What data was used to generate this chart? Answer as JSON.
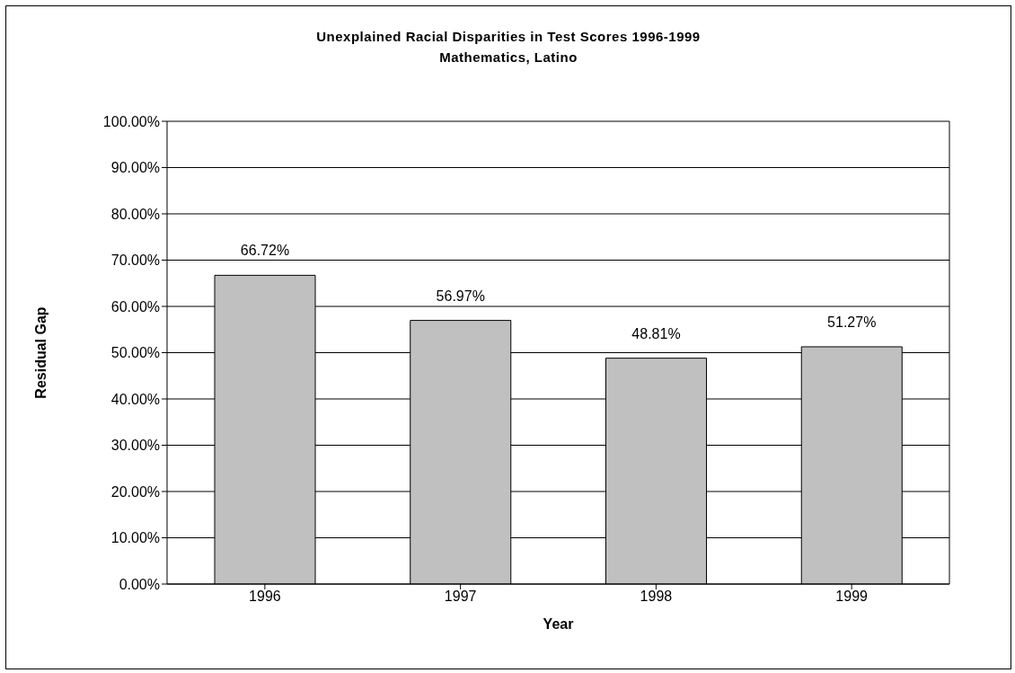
{
  "chart_data": {
    "type": "bar",
    "title": "Unexplained Racial Disparities in Test Scores 1996-1999",
    "subtitle": "Mathematics, Latino",
    "xlabel": "Year",
    "ylabel": "Residual Gap",
    "categories": [
      "1996",
      "1997",
      "1998",
      "1999"
    ],
    "values": [
      66.72,
      56.97,
      48.81,
      51.27
    ],
    "value_labels": [
      "66.72%",
      "56.97%",
      "48.81%",
      "51.27%"
    ],
    "color": "#c0c0c0",
    "ylim": [
      0,
      100
    ],
    "yticks": [
      {
        "value": 0,
        "label": "0.00%"
      },
      {
        "value": 10,
        "label": "10.00%"
      },
      {
        "value": 20,
        "label": "20.00%"
      },
      {
        "value": 30,
        "label": "30.00%"
      },
      {
        "value": 40,
        "label": "40.00%"
      },
      {
        "value": 50,
        "label": "50.00%"
      },
      {
        "value": 60,
        "label": "60.00%"
      },
      {
        "value": 70,
        "label": "70.00%"
      },
      {
        "value": 80,
        "label": "80.00%"
      },
      {
        "value": 90,
        "label": "90.00%"
      },
      {
        "value": 100,
        "label": "100.00%"
      }
    ],
    "grid": "y",
    "legend": false
  }
}
